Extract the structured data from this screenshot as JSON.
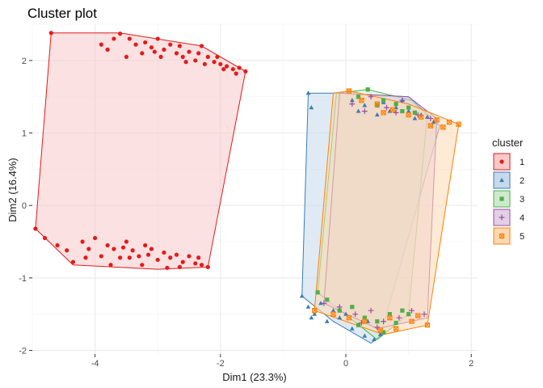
{
  "chart_data": {
    "type": "scatter",
    "title": "Cluster plot",
    "xlabel": "Dim1 (23.3%)",
    "ylabel": "Dim2 (16.4%)",
    "xlim": [
      -5.0,
      2.1
    ],
    "ylim": [
      -2.05,
      2.5
    ],
    "x_ticks": [
      -4,
      -2,
      0,
      2
    ],
    "x_tick_labels": [
      "-4",
      "-2",
      "0",
      "2"
    ],
    "y_ticks": [
      -2,
      -1,
      0,
      1,
      2
    ],
    "y_tick_labels": [
      "-2",
      "-1",
      "0",
      "1",
      "2"
    ],
    "grid": true,
    "legend": {
      "title": "cluster",
      "position": "right"
    },
    "series": [
      {
        "name": "1",
        "color": "#e41a1c",
        "fill": "#f8c9c9",
        "marker": "circle",
        "hull": [
          [
            -4.7,
            2.38
          ],
          [
            -3.6,
            2.38
          ],
          [
            -2.3,
            2.2
          ],
          [
            -1.6,
            1.85
          ],
          [
            -2.2,
            -0.85
          ],
          [
            -3.0,
            -0.88
          ],
          [
            -4.35,
            -0.82
          ],
          [
            -4.95,
            -0.32
          ]
        ],
        "points": [
          [
            -4.7,
            2.38
          ],
          [
            -3.6,
            2.37
          ],
          [
            -3.45,
            2.3
          ],
          [
            -3.35,
            2.22
          ],
          [
            -3.2,
            2.25
          ],
          [
            -3.1,
            2.18
          ],
          [
            -3.0,
            2.3
          ],
          [
            -2.9,
            2.15
          ],
          [
            -2.8,
            2.22
          ],
          [
            -2.7,
            2.1
          ],
          [
            -2.6,
            2.05
          ],
          [
            -2.5,
            2.12
          ],
          [
            -2.4,
            2.0
          ],
          [
            -2.3,
            2.2
          ],
          [
            -2.2,
            2.05
          ],
          [
            -2.1,
            1.98
          ],
          [
            -2.0,
            1.95
          ],
          [
            -1.9,
            1.92
          ],
          [
            -1.8,
            1.88
          ],
          [
            -1.6,
            1.85
          ],
          [
            -1.7,
            1.9
          ],
          [
            -3.8,
            2.15
          ],
          [
            -3.9,
            2.22
          ],
          [
            -3.5,
            2.05
          ],
          [
            -3.25,
            2.1
          ],
          [
            -2.95,
            2.05
          ],
          [
            -2.65,
            2.2
          ],
          [
            -2.35,
            2.1
          ],
          [
            -2.05,
            2.05
          ],
          [
            -1.75,
            1.82
          ],
          [
            -3.7,
            2.3
          ],
          [
            -3.05,
            2.12
          ],
          [
            -2.55,
            1.98
          ],
          [
            -2.25,
            1.95
          ],
          [
            -1.95,
            1.88
          ],
          [
            -4.95,
            -0.32
          ],
          [
            -4.8,
            -0.45
          ],
          [
            -4.6,
            -0.55
          ],
          [
            -4.35,
            -0.78
          ],
          [
            -4.2,
            -0.5
          ],
          [
            -4.1,
            -0.6
          ],
          [
            -4.0,
            -0.45
          ],
          [
            -3.9,
            -0.7
          ],
          [
            -3.8,
            -0.55
          ],
          [
            -3.7,
            -0.6
          ],
          [
            -3.6,
            -0.72
          ],
          [
            -3.5,
            -0.5
          ],
          [
            -3.4,
            -0.62
          ],
          [
            -3.3,
            -0.7
          ],
          [
            -3.2,
            -0.55
          ],
          [
            -3.1,
            -0.6
          ],
          [
            -3.0,
            -0.75
          ],
          [
            -2.9,
            -0.65
          ],
          [
            -2.8,
            -0.72
          ],
          [
            -2.7,
            -0.68
          ],
          [
            -2.6,
            -0.78
          ],
          [
            -2.5,
            -0.7
          ],
          [
            -2.4,
            -0.8
          ],
          [
            -2.3,
            -0.82
          ],
          [
            -2.2,
            -0.85
          ],
          [
            -2.35,
            -0.72
          ],
          [
            -3.55,
            -0.58
          ],
          [
            -3.25,
            -0.82
          ],
          [
            -2.85,
            -0.86
          ],
          [
            -3.75,
            -0.82
          ],
          [
            -4.45,
            -0.62
          ],
          [
            -4.15,
            -0.72
          ],
          [
            -3.45,
            -0.72
          ],
          [
            -2.65,
            -0.85
          ],
          [
            -3.15,
            -0.68
          ]
        ]
      },
      {
        "name": "2",
        "color": "#377eb8",
        "fill": "#c7d9eb",
        "marker": "triangle",
        "hull": [
          [
            -0.6,
            1.55
          ],
          [
            -0.15,
            1.55
          ],
          [
            1.0,
            1.5
          ],
          [
            1.5,
            1.1
          ],
          [
            0.55,
            -1.8
          ],
          [
            0.4,
            -1.9
          ],
          [
            -0.2,
            -1.6
          ],
          [
            -0.7,
            -1.25
          ]
        ],
        "points": [
          [
            -0.6,
            1.55
          ],
          [
            -0.55,
            1.35
          ],
          [
            0.1,
            1.45
          ],
          [
            0.3,
            1.38
          ],
          [
            0.6,
            1.42
          ],
          [
            0.8,
            1.35
          ],
          [
            1.0,
            1.3
          ],
          [
            1.2,
            1.25
          ],
          [
            1.4,
            1.15
          ],
          [
            0.5,
            1.25
          ],
          [
            0.9,
            1.45
          ],
          [
            1.3,
            1.22
          ],
          [
            0.2,
            1.3
          ],
          [
            0.7,
            1.3
          ],
          [
            1.1,
            1.2
          ],
          [
            -0.7,
            -1.25
          ],
          [
            -0.6,
            -1.4
          ],
          [
            -0.5,
            -1.5
          ],
          [
            -0.3,
            -1.6
          ],
          [
            -0.1,
            -1.55
          ],
          [
            0.1,
            -1.7
          ],
          [
            0.3,
            -1.8
          ],
          [
            0.45,
            -1.85
          ],
          [
            0.55,
            -1.78
          ],
          [
            -0.4,
            -1.35
          ],
          [
            0.0,
            -1.5
          ],
          [
            0.2,
            -1.65
          ],
          [
            -0.2,
            -1.45
          ],
          [
            0.35,
            -1.6
          ],
          [
            -0.55,
            -1.55
          ]
        ]
      },
      {
        "name": "3",
        "color": "#4daf4a",
        "fill": "#cfe9ce",
        "marker": "square",
        "hull": [
          [
            -0.15,
            1.55
          ],
          [
            0.35,
            1.6
          ],
          [
            1.05,
            1.45
          ],
          [
            1.3,
            1.25
          ],
          [
            1.0,
            -1.5
          ],
          [
            0.5,
            -1.85
          ],
          [
            -0.45,
            -1.2
          ]
        ],
        "points": [
          [
            0.35,
            1.6
          ],
          [
            0.2,
            1.5
          ],
          [
            0.6,
            1.45
          ],
          [
            0.8,
            1.4
          ],
          [
            1.0,
            1.35
          ],
          [
            1.1,
            1.28
          ],
          [
            0.5,
            1.38
          ],
          [
            0.9,
            1.3
          ],
          [
            -0.45,
            -1.2
          ],
          [
            -0.3,
            -1.3
          ],
          [
            -0.1,
            -1.45
          ],
          [
            0.1,
            -1.4
          ],
          [
            0.3,
            -1.55
          ],
          [
            0.5,
            -1.6
          ],
          [
            0.7,
            -1.5
          ],
          [
            0.9,
            -1.45
          ],
          [
            1.0,
            -1.5
          ],
          [
            0.6,
            -1.75
          ],
          [
            0.2,
            -1.65
          ],
          [
            0.8,
            -1.62
          ]
        ]
      },
      {
        "name": "4",
        "color": "#984ea3",
        "fill": "#e3cfe6",
        "marker": "plus",
        "hull": [
          [
            -0.1,
            1.55
          ],
          [
            1.0,
            1.5
          ],
          [
            1.45,
            1.2
          ],
          [
            1.3,
            -1.55
          ],
          [
            0.5,
            -1.7
          ],
          [
            -0.35,
            -1.35
          ]
        ],
        "points": [
          [
            0.1,
            1.4
          ],
          [
            0.4,
            1.5
          ],
          [
            0.65,
            1.35
          ],
          [
            0.9,
            1.45
          ],
          [
            1.15,
            1.25
          ],
          [
            1.35,
            1.2
          ],
          [
            0.3,
            1.3
          ],
          [
            0.8,
            1.28
          ],
          [
            -0.35,
            -1.35
          ],
          [
            -0.1,
            -1.4
          ],
          [
            0.15,
            -1.5
          ],
          [
            0.4,
            -1.45
          ],
          [
            0.6,
            -1.6
          ],
          [
            0.85,
            -1.55
          ],
          [
            1.05,
            -1.45
          ],
          [
            1.25,
            -1.5
          ],
          [
            0.5,
            -1.68
          ],
          [
            0.25,
            -1.62
          ]
        ]
      },
      {
        "name": "5",
        "color": "#ff7f00",
        "fill": "#ffd8b3",
        "marker": "boxcross",
        "hull": [
          [
            -0.2,
            1.55
          ],
          [
            0.05,
            1.58
          ],
          [
            1.0,
            1.4
          ],
          [
            1.8,
            1.12
          ],
          [
            1.3,
            -1.65
          ],
          [
            0.6,
            -1.78
          ],
          [
            -0.5,
            -1.45
          ]
        ],
        "points": [
          [
            0.05,
            1.58
          ],
          [
            0.25,
            1.45
          ],
          [
            0.5,
            1.4
          ],
          [
            0.75,
            1.32
          ],
          [
            1.0,
            1.25
          ],
          [
            1.2,
            1.22
          ],
          [
            1.45,
            1.18
          ],
          [
            1.65,
            1.15
          ],
          [
            1.8,
            1.12
          ],
          [
            0.6,
            1.28
          ],
          [
            1.35,
            1.1
          ],
          [
            1.55,
            1.08
          ],
          [
            -0.5,
            -1.45
          ],
          [
            -0.2,
            -1.5
          ],
          [
            0.05,
            -1.55
          ],
          [
            0.3,
            -1.6
          ],
          [
            0.55,
            -1.72
          ],
          [
            0.8,
            -1.7
          ],
          [
            1.05,
            -1.6
          ],
          [
            1.3,
            -1.65
          ],
          [
            0.7,
            -1.55
          ],
          [
            1.15,
            -1.52
          ]
        ]
      }
    ]
  }
}
